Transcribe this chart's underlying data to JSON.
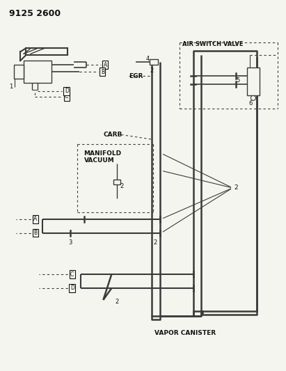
{
  "title": "9125 2600",
  "bg_color": "#f5f5f0",
  "line_color": "#3a3a3a",
  "text_color": "#111111",
  "labels": {
    "air_switch_valve": "AIR SWITCH VALVE",
    "egr": "EGR",
    "carb": "CARB",
    "manifold_vacuum": "MANIFOLD\nVACUUM",
    "vapor_canister": "VAPOR CANISTER"
  },
  "pipe_lw": 1.8,
  "thin_lw": 1.0
}
